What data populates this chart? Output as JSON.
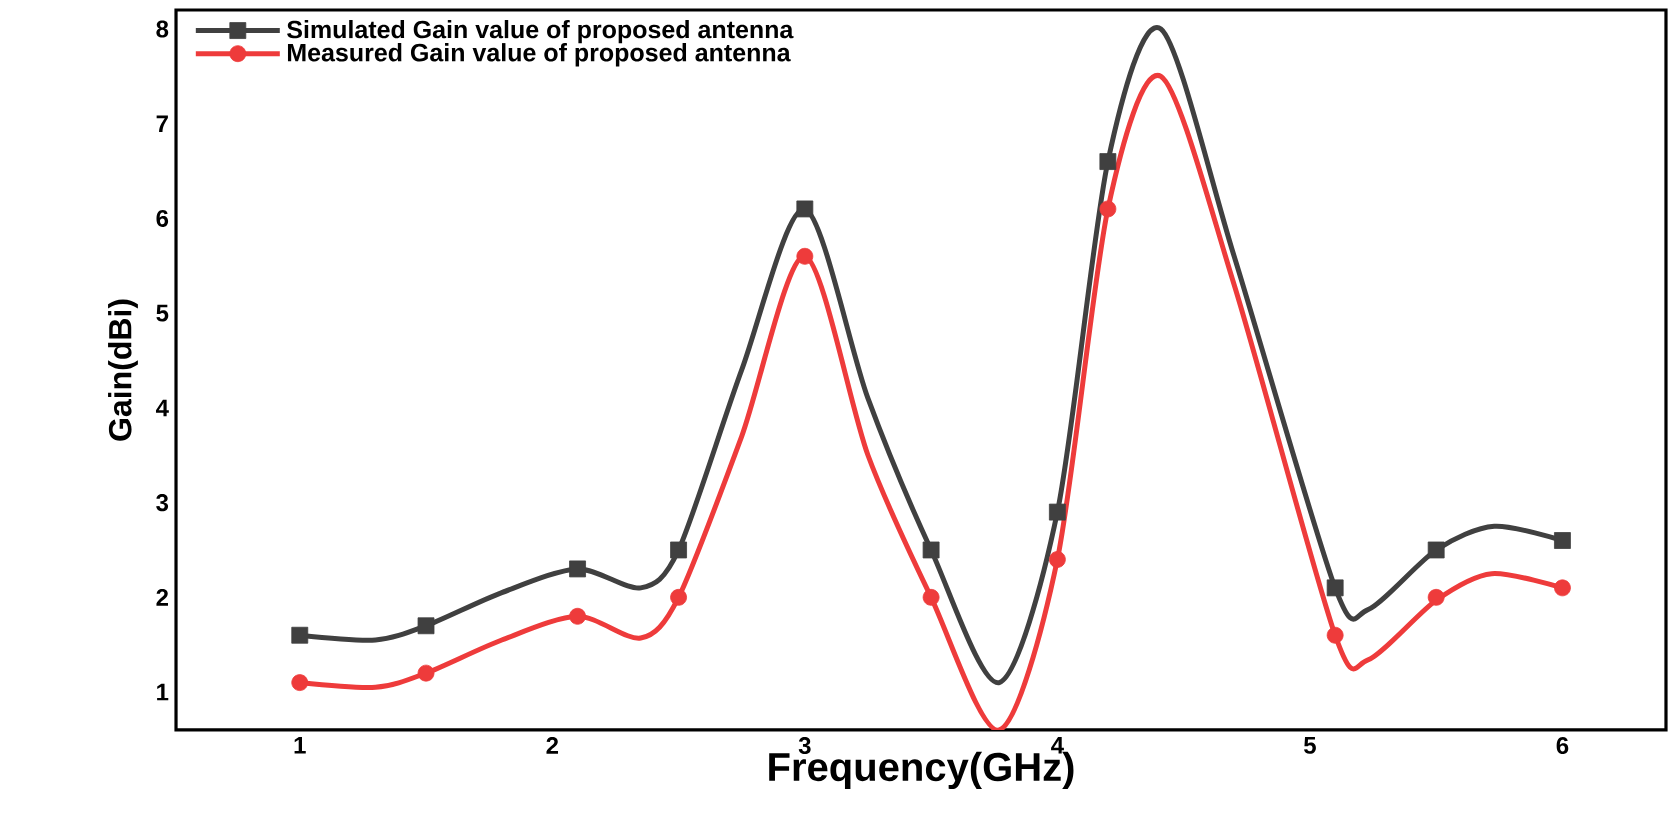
{
  "chart_data": {
    "type": "line",
    "xlabel": "Frequency(GHz)",
    "ylabel": "Gain(dBi)",
    "xlim": [
      0.51,
      6.41
    ],
    "ylim": [
      0.6,
      8.2
    ],
    "xticks": [
      1,
      2,
      3,
      4,
      5,
      6
    ],
    "yticks": [
      1,
      2,
      3,
      4,
      5,
      6,
      7,
      8
    ],
    "legend": "top left",
    "grid": false,
    "series": [
      {
        "name": "Simulated Gain value of proposed antenna",
        "type": "scatter",
        "marker": "square",
        "color": "#404040",
        "x": [
          1,
          1.5,
          2.1,
          2.5,
          3,
          3.5,
          4,
          4.2,
          5.1,
          5.5,
          6
        ],
        "values": [
          1.6,
          1.7,
          2.3,
          2.5,
          6.1,
          2.5,
          2.9,
          6.6,
          2.1,
          2.5,
          2.6
        ]
      },
      {
        "name": "Measured Gain value of proposed antenna",
        "type": "scatter",
        "marker": "circle",
        "color": "#ee3b3b",
        "x": [
          1,
          1.5,
          2.1,
          2.5,
          3,
          3.5,
          4,
          4.2,
          5.1,
          5.5,
          6
        ],
        "values": [
          1.1,
          1.2,
          1.8,
          2.0,
          5.6,
          2.0,
          2.4,
          6.1,
          1.6,
          2.0,
          2.1
        ]
      },
      {
        "type": "line",
        "marker": "none",
        "color": "#404040",
        "x": [
          1,
          1.3,
          1.5,
          1.8,
          2.1,
          2.35,
          2.5,
          2.75,
          3,
          3.25,
          3.5,
          3.77,
          4,
          4.2,
          4.41,
          4.7,
          5.1,
          5.23,
          5.5,
          5.73,
          6
        ],
        "values": [
          1.6,
          1.55,
          1.7,
          2.05,
          2.3,
          2.1,
          2.5,
          4.4,
          6.1,
          4.1,
          2.5,
          1.1,
          2.9,
          6.6,
          8.0,
          5.6,
          2.1,
          1.87,
          2.5,
          2.75,
          2.6
        ]
      },
      {
        "type": "line",
        "marker": "none",
        "color": "#ee3b3b",
        "x": [
          1,
          1.3,
          1.5,
          1.8,
          2.1,
          2.35,
          2.5,
          2.75,
          3,
          3.25,
          3.5,
          3.77,
          4,
          4.2,
          4.41,
          4.7,
          5.1,
          5.23,
          5.5,
          5.72,
          6
        ],
        "values": [
          1.1,
          1.05,
          1.2,
          1.55,
          1.8,
          1.57,
          2.0,
          3.7,
          5.6,
          3.5,
          2.0,
          0.6,
          2.4,
          6.1,
          7.5,
          5.3,
          1.6,
          1.34,
          1.97,
          2.25,
          2.1
        ]
      }
    ]
  }
}
